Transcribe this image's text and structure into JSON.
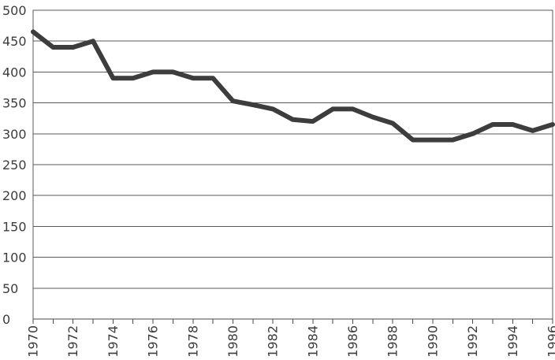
{
  "chart_data": {
    "type": "line",
    "title": "",
    "xlabel": "",
    "ylabel": "",
    "x": [
      1970,
      1971,
      1972,
      1973,
      1974,
      1975,
      1976,
      1977,
      1978,
      1979,
      1980,
      1981,
      1982,
      1983,
      1984,
      1985,
      1986,
      1987,
      1988,
      1989,
      1990,
      1991,
      1992,
      1993,
      1994,
      1995,
      1996
    ],
    "series": [
      {
        "values": [
          465,
          440,
          440,
          450,
          390,
          390,
          400,
          400,
          390,
          390,
          353,
          347,
          340,
          323,
          320,
          340,
          340,
          327,
          317,
          290,
          290,
          290,
          300,
          315,
          315,
          305,
          315
        ]
      }
    ],
    "xlim": [
      1970,
      1996
    ],
    "ylim": [
      0,
      500
    ],
    "x_ticks": [
      "1970",
      "1972",
      "1974",
      "1976",
      "1978",
      "1980",
      "1982",
      "1984",
      "1986",
      "1988",
      "1990",
      "1992",
      "1994",
      "1996"
    ],
    "y_ticks": [
      "0",
      "50",
      "100",
      "150",
      "200",
      "250",
      "300",
      "350",
      "400",
      "450",
      "500"
    ],
    "grid": true,
    "legend": "none",
    "colors": {
      "line": "#3d3d3d",
      "grid": "#5a5a5a",
      "text": "#3c3c3c"
    }
  }
}
